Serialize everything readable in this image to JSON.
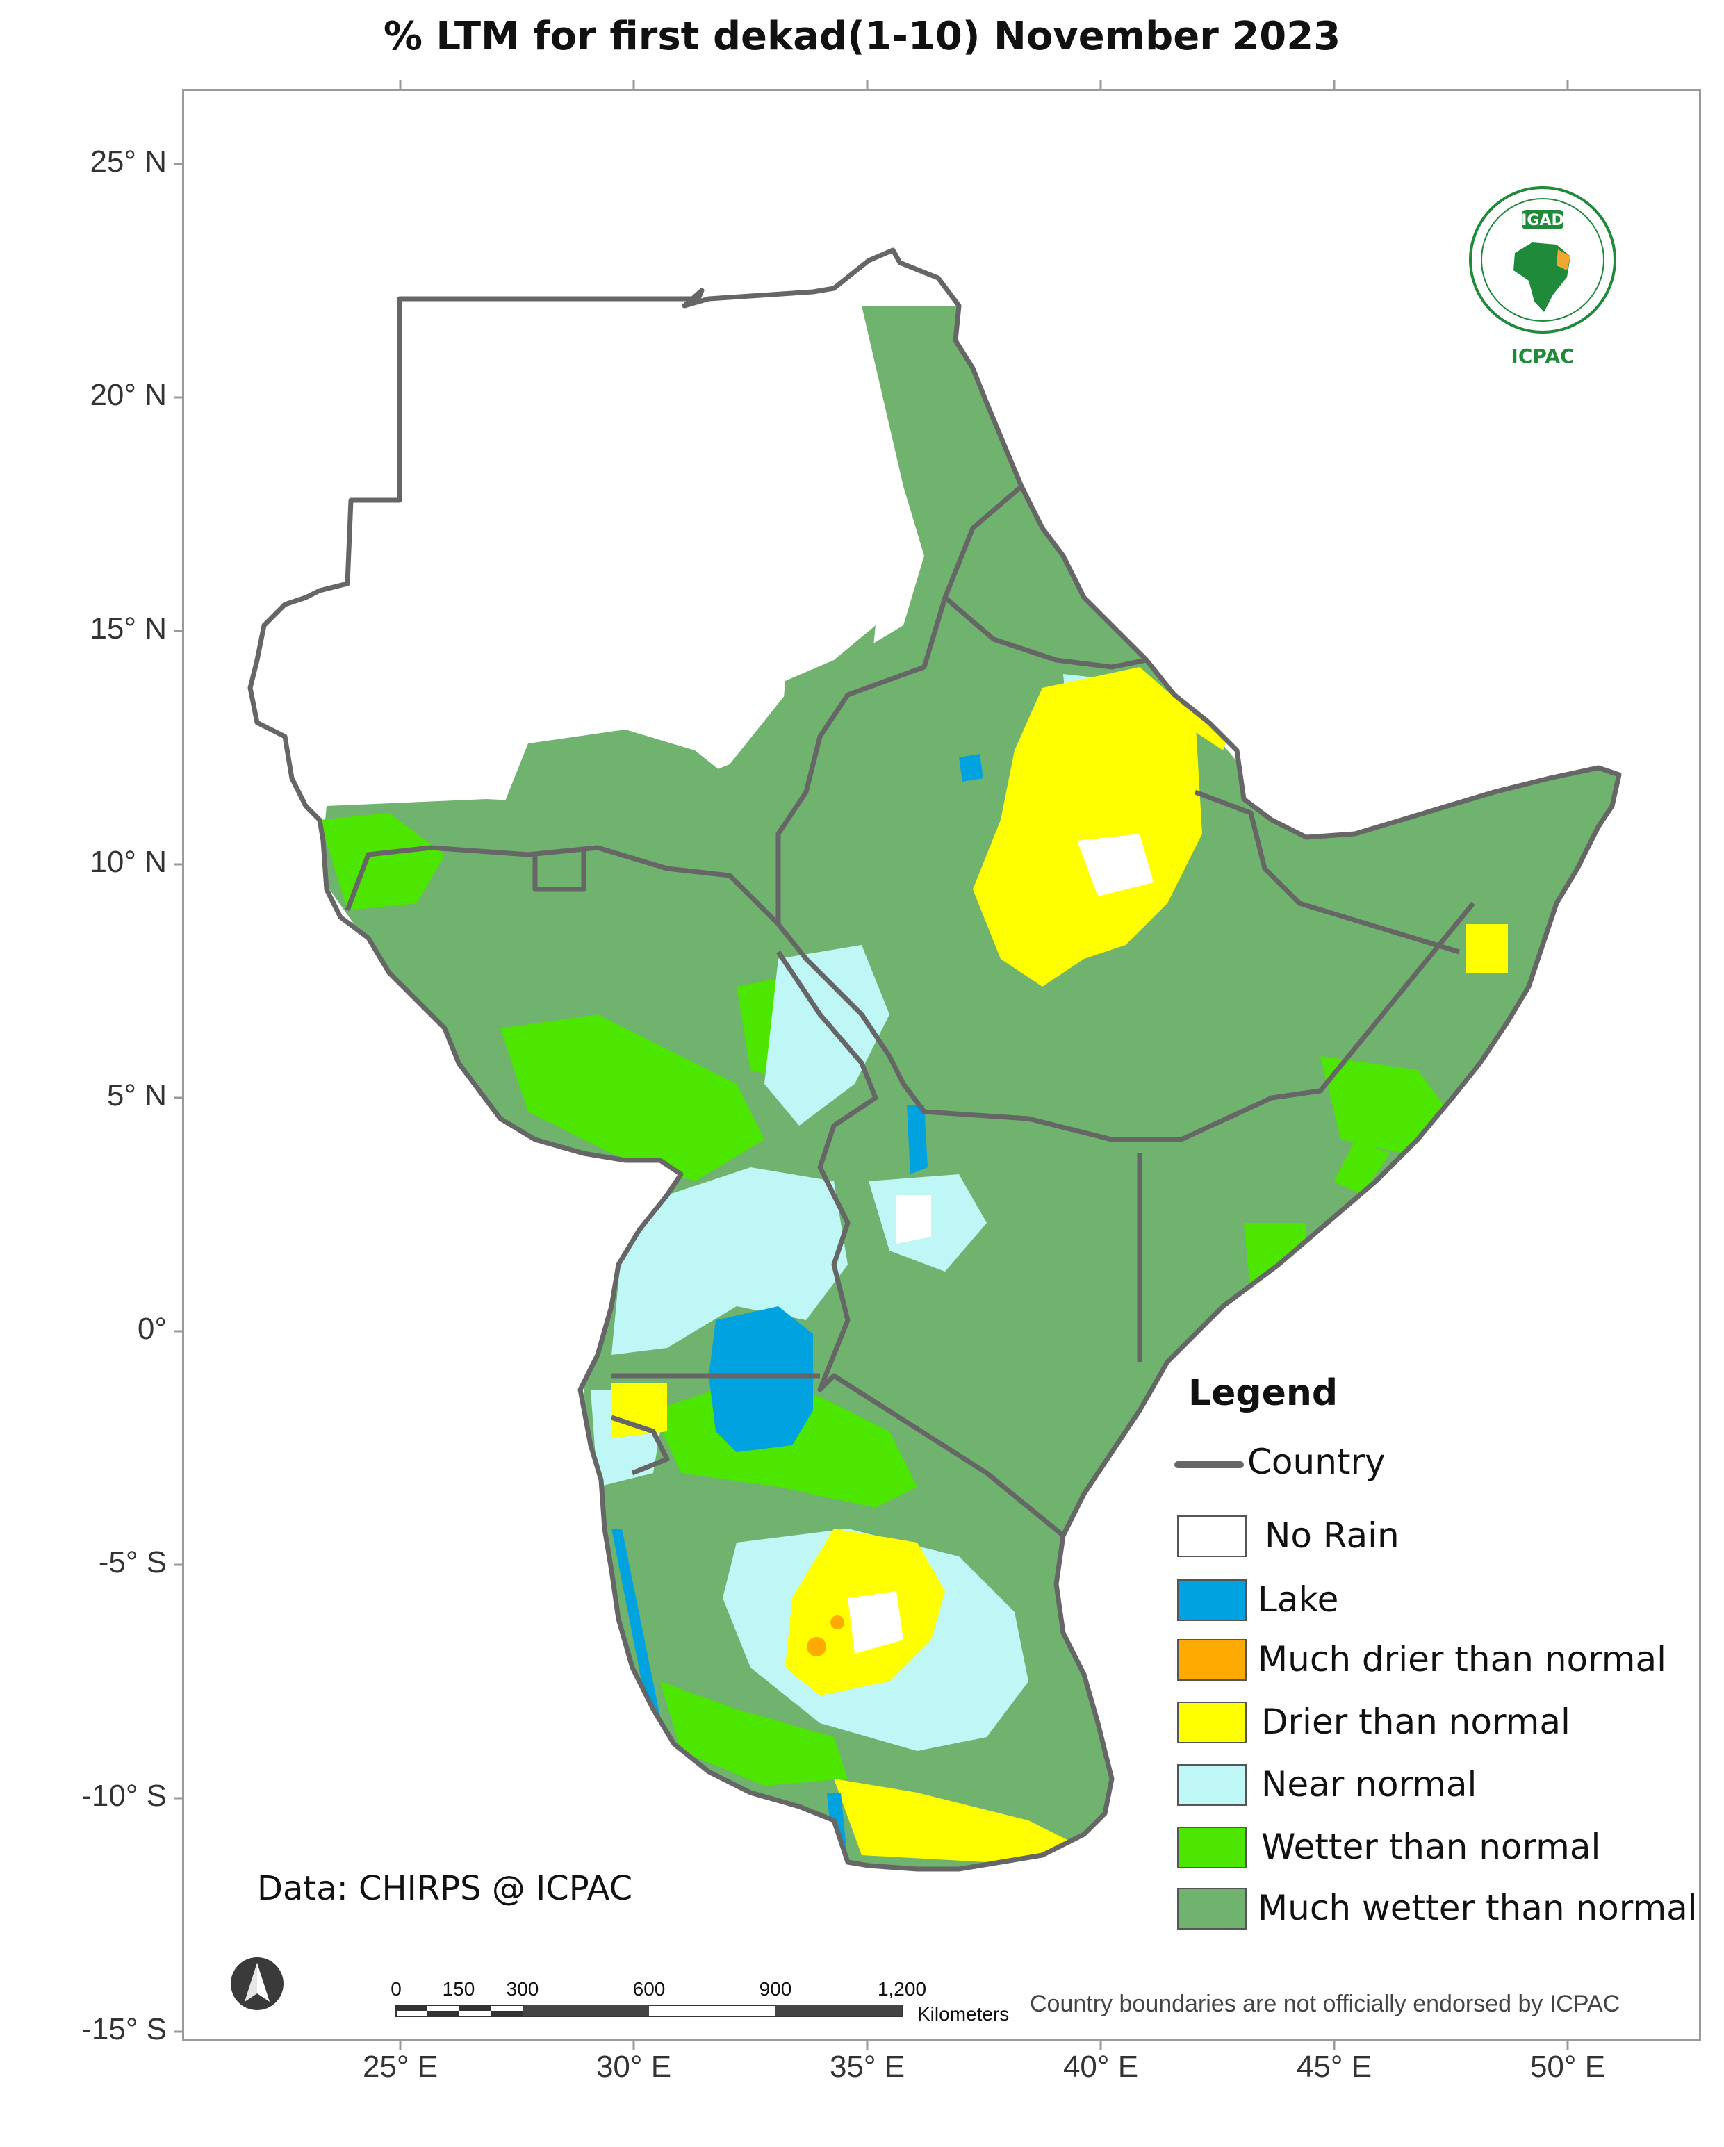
{
  "title": "% LTM  for first dekad(1-10) November 2023",
  "axes": {
    "latitude_ticks": [
      "25° N",
      "20° N",
      "15° N",
      "10° N",
      "5° N",
      "0°",
      "-5° S",
      "-10° S",
      "-15° S"
    ],
    "longitude_ticks": [
      "25° E",
      "30° E",
      "35° E",
      "40° E",
      "45° E",
      "50° E"
    ]
  },
  "legend": {
    "title": "Legend",
    "country_label": "Country",
    "items": [
      {
        "label": "No Rain",
        "color": "#ffffff"
      },
      {
        "label": "Lake",
        "color": "#00a3e0"
      },
      {
        "label": "Much drier than normal",
        "color": "#ffaa00"
      },
      {
        "label": "Drier than normal",
        "color": "#ffff00"
      },
      {
        "label": "Near normal",
        "color": "#bff7f7"
      },
      {
        "label": "Wetter than normal",
        "color": "#4ce600"
      },
      {
        "label": "Much wetter than normal",
        "color": "#6fb36f"
      }
    ]
  },
  "scalebar": {
    "ticks": [
      "0",
      "150",
      "300",
      "600",
      "900",
      "1,200"
    ],
    "unit": "Kilometers"
  },
  "logo": {
    "top_text": "IGAD",
    "bottom_text": "ICPAC"
  },
  "data_credit": "Data: CHIRPS @ ICPAC",
  "disclaimer": "Country boundaries are not officially endorsed by ICPAC",
  "colors": {
    "country_border": "#666666",
    "frame": "#9a9a9a"
  }
}
